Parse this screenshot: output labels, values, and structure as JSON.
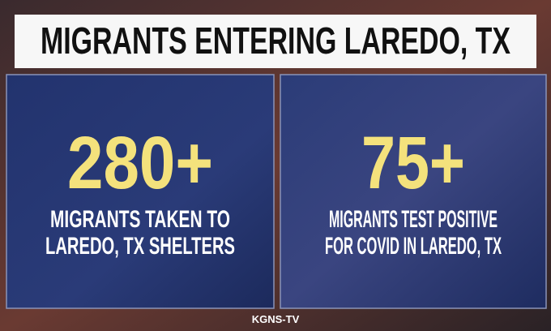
{
  "title": "MIGRANTS ENTERING LAREDO, TX",
  "panels": [
    {
      "stat": "280+",
      "caption": [
        "MIGRANTS TAKEN TO",
        "LAREDO, TX SHELTERS"
      ]
    },
    {
      "stat": "75+",
      "caption": [
        "MIGRANTS TEST POSITIVE",
        "FOR COVID IN LAREDO, TX"
      ]
    }
  ],
  "source": "KGNS-TV"
}
